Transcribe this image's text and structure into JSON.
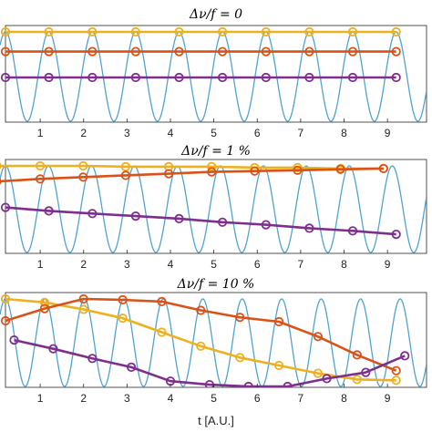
{
  "chart_data": [
    {
      "type": "line",
      "title": "Δν/f = 0",
      "x_ticks": [
        1,
        2,
        3,
        4,
        5,
        6,
        7,
        8,
        9
      ],
      "xlim": [
        0.2,
        9.9
      ],
      "grid": false,
      "carrier": {
        "color": "#4fa3d1",
        "frequency": 1.0
      },
      "series": [
        {
          "color": "#edb120",
          "x": [
            0.2,
            1.2,
            2.2,
            3.2,
            4.2,
            5.2,
            6.2,
            7.2,
            8.2,
            9.2
          ],
          "y": [
            1,
            1,
            1,
            1,
            1,
            1,
            1,
            1,
            1,
            1
          ]
        },
        {
          "color": "#d95319",
          "x": [
            0.2,
            1.2,
            2.2,
            3.2,
            4.2,
            5.2,
            6.2,
            7.2,
            8.2,
            9.2
          ],
          "y": [
            0.78,
            0.78,
            0.78,
            0.78,
            0.78,
            0.78,
            0.78,
            0.78,
            0.78,
            0.78
          ]
        },
        {
          "color": "#7e2f8e",
          "x": [
            0.2,
            1.2,
            2.2,
            3.2,
            4.2,
            5.2,
            6.2,
            7.2,
            8.2,
            9.2
          ],
          "y": [
            0.49,
            0.49,
            0.49,
            0.49,
            0.49,
            0.49,
            0.49,
            0.49,
            0.49,
            0.49
          ]
        }
      ]
    },
    {
      "type": "line",
      "title": "Δν/f = 1 %",
      "x_ticks": [
        1,
        2,
        3,
        4,
        5,
        6,
        7,
        8,
        9
      ],
      "xlim": [
        0.2,
        9.9
      ],
      "grid": false,
      "carrier": {
        "color": "#4fa3d1",
        "frequency": 1.01
      },
      "series": [
        {
          "color": "#edb120",
          "x": [
            0.0,
            1.0,
            1.99,
            2.97,
            3.96,
            4.95,
            5.94,
            6.93,
            7.92,
            8.91
          ],
          "y": [
            1.0,
            1.0,
            1.0,
            0.99,
            0.99,
            0.99,
            0.98,
            0.98,
            0.97,
            0.97
          ]
        },
        {
          "color": "#d95319",
          "x": [
            0.0,
            1.0,
            1.99,
            2.97,
            3.96,
            4.95,
            5.94,
            6.93,
            7.92,
            8.91
          ],
          "y": [
            0.82,
            0.85,
            0.87,
            0.89,
            0.91,
            0.93,
            0.94,
            0.95,
            0.96,
            0.97
          ]
        },
        {
          "color": "#7e2f8e",
          "x": [
            0.2,
            1.2,
            2.2,
            3.2,
            4.2,
            5.2,
            6.2,
            7.2,
            8.2,
            9.2
          ],
          "y": [
            0.52,
            0.48,
            0.45,
            0.42,
            0.39,
            0.35,
            0.32,
            0.28,
            0.25,
            0.21
          ]
        }
      ]
    },
    {
      "type": "line",
      "title": "Δν/f = 10 %",
      "x_ticks": [
        1,
        2,
        3,
        4,
        5,
        6,
        7,
        8,
        9
      ],
      "xlim": [
        0.2,
        9.9
      ],
      "grid": false,
      "xlabel": "t [A.U.]",
      "carrier": {
        "color": "#4fa3d1",
        "frequency": 1.1
      },
      "series": [
        {
          "color": "#edb120",
          "x": [
            0.2,
            1.1,
            2.0,
            2.9,
            3.8,
            4.7,
            5.6,
            6.5,
            7.4,
            8.3,
            9.2
          ],
          "y": [
            1.0,
            0.96,
            0.88,
            0.78,
            0.62,
            0.46,
            0.33,
            0.24,
            0.15,
            0.08,
            0.07
          ]
        },
        {
          "color": "#d95319",
          "x": [
            0.2,
            1.1,
            2.0,
            2.9,
            3.8,
            4.7,
            5.6,
            6.5,
            7.4,
            8.3,
            9.2
          ],
          "y": [
            0.75,
            0.89,
            1.0,
            0.99,
            0.97,
            0.87,
            0.79,
            0.74,
            0.57,
            0.36,
            0.18
          ]
        },
        {
          "color": "#7e2f8e",
          "x": [
            0.4,
            1.3,
            2.2,
            3.1,
            4.0,
            4.9,
            5.8,
            6.7,
            7.6,
            8.5,
            9.4
          ],
          "y": [
            0.53,
            0.43,
            0.32,
            0.22,
            0.06,
            0.02,
            0.0,
            0.0,
            0.09,
            0.16,
            0.35
          ]
        }
      ]
    }
  ]
}
